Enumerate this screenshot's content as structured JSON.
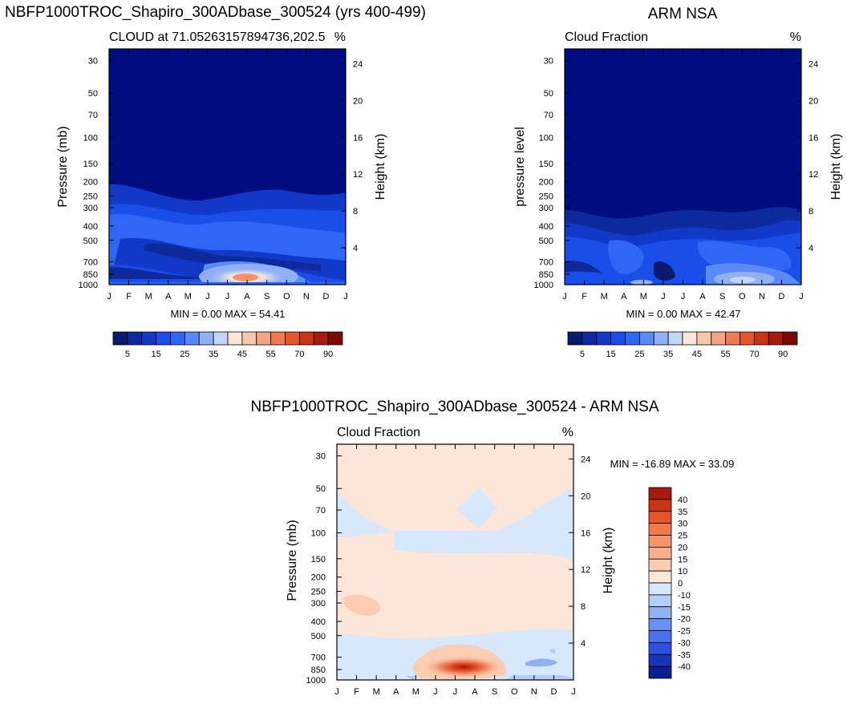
{
  "chart_data": [
    {
      "type": "heatmap",
      "title": "NBFP1000TROC_Shapiro_300ADbase_300524 (yrs 400-499)",
      "subtitle_left": "CLOUD at 71.05263157894736,202.5",
      "subtitle_right": "%",
      "ylabel": "Pressure (mb)",
      "ylabel_right": "Height (km)",
      "x_ticks": [
        "J",
        "F",
        "M",
        "A",
        "M",
        "J",
        "J",
        "A",
        "S",
        "O",
        "N",
        "D",
        "J"
      ],
      "y_ticks": [
        "30",
        "50",
        "70",
        "100",
        "150",
        "200",
        "250",
        "300",
        "400",
        "500",
        "700",
        "850",
        "1000"
      ],
      "y_ticks_right": [
        "24",
        "20",
        "16",
        "12",
        "8",
        "4"
      ],
      "stats": "MIN =   0.00 MAX =  54.41",
      "min": 0.0,
      "max": 54.41,
      "colorbar": {
        "orientation": "horizontal",
        "labels": [
          "5",
          "15",
          "25",
          "35",
          "45",
          "55",
          "70",
          "90"
        ],
        "colors": [
          "#0a1a6e",
          "#0d2a9c",
          "#1238c8",
          "#1a4ee8",
          "#2f66f5",
          "#5a8af7",
          "#8fb0f5",
          "#c3d6f7",
          "#fbe6d9",
          "#f8c8ad",
          "#f4a582",
          "#f07a4e",
          "#e8542b",
          "#c93414",
          "#a51a0a",
          "#7a0a04"
        ]
      }
    },
    {
      "type": "heatmap",
      "title": "ARM NSA",
      "subtitle_left": "Cloud Fraction",
      "subtitle_right": "%",
      "ylabel": "pressure level",
      "ylabel_right": "Height (km)",
      "x_ticks": [
        "J",
        "F",
        "M",
        "A",
        "M",
        "J",
        "J",
        "A",
        "S",
        "O",
        "N",
        "D",
        "J"
      ],
      "y_ticks": [
        "30",
        "50",
        "70",
        "100",
        "150",
        "200",
        "250",
        "300",
        "400",
        "500",
        "700",
        "850",
        "1000"
      ],
      "y_ticks_right": [
        "24",
        "20",
        "16",
        "12",
        "8",
        "4"
      ],
      "stats": "MIN =   0.00 MAX =  42.47",
      "min": 0.0,
      "max": 42.47,
      "colorbar": {
        "orientation": "horizontal",
        "labels": [
          "5",
          "15",
          "25",
          "35",
          "45",
          "55",
          "70",
          "90"
        ],
        "colors": [
          "#0a1a6e",
          "#0d2a9c",
          "#1238c8",
          "#1a4ee8",
          "#2f66f5",
          "#5a8af7",
          "#8fb0f5",
          "#c3d6f7",
          "#fbe6d9",
          "#f8c8ad",
          "#f4a582",
          "#f07a4e",
          "#e8542b",
          "#c93414",
          "#a51a0a",
          "#7a0a04"
        ]
      }
    },
    {
      "type": "heatmap",
      "title": "NBFP1000TROC_Shapiro_300ADbase_300524 - ARM NSA",
      "subtitle_left": "Cloud Fraction",
      "subtitle_right": "%",
      "ylabel": "Pressure (mb)",
      "ylabel_right": "Height (km)",
      "x_ticks": [
        "J",
        "F",
        "M",
        "A",
        "M",
        "J",
        "J",
        "A",
        "S",
        "O",
        "N",
        "D",
        "J"
      ],
      "y_ticks": [
        "30",
        "50",
        "70",
        "100",
        "150",
        "200",
        "250",
        "300",
        "400",
        "500",
        "700",
        "850",
        "1000"
      ],
      "y_ticks_right": [
        "24",
        "20",
        "16",
        "12",
        "8",
        "4"
      ],
      "stats": "MIN = -16.89 MAX =  33.09",
      "min": -16.89,
      "max": 33.09,
      "colorbar": {
        "orientation": "vertical",
        "labels": [
          "40",
          "35",
          "30",
          "25",
          "20",
          "15",
          "10",
          "0",
          "-10",
          "-15",
          "-20",
          "-25",
          "-30",
          "-35",
          "-40"
        ],
        "colors": [
          "#a51a0a",
          "#c93414",
          "#e8542b",
          "#f07a4e",
          "#f4946a",
          "#f7b08f",
          "#fbcdb3",
          "#fbe6d9",
          "#d6e8fa",
          "#b5cef5",
          "#8fb0f5",
          "#6a90f2",
          "#4a70ee",
          "#2c50e0",
          "#1a34b8",
          "#0d1f8c"
        ]
      }
    }
  ]
}
